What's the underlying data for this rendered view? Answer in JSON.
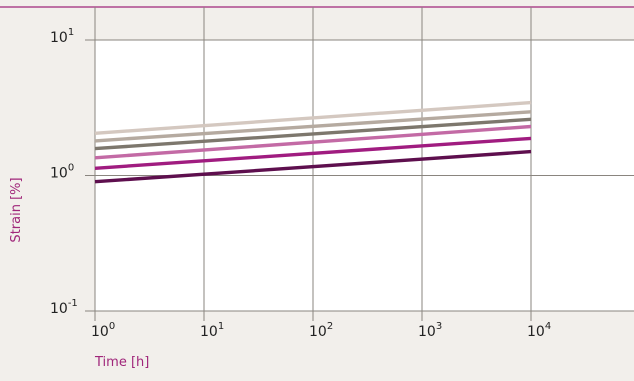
{
  "chart_data": {
    "type": "line",
    "xlabel": "Time [h]",
    "ylabel": "Strain [%]",
    "xscale": "log",
    "yscale": "log",
    "xlim": [
      1,
      10000
    ],
    "ylim": [
      0.1,
      10
    ],
    "x_ticks": [
      {
        "base": "10",
        "exp": "0"
      },
      {
        "base": "10",
        "exp": "1"
      },
      {
        "base": "10",
        "exp": "2"
      },
      {
        "base": "10",
        "exp": "3"
      },
      {
        "base": "10",
        "exp": "4"
      }
    ],
    "y_ticks": [
      {
        "base": "10",
        "exp": "1",
        "value": 10
      },
      {
        "base": "10",
        "exp": "0",
        "value": 1
      },
      {
        "base": "10",
        "exp": "-1",
        "value": 0.1
      }
    ],
    "grid": true,
    "legend": "none",
    "series": [
      {
        "color": "#d4c8c0",
        "x": [
          1,
          10000
        ],
        "y": [
          2.05,
          3.45
        ]
      },
      {
        "color": "#b5aaa0",
        "x": [
          1,
          10000
        ],
        "y": [
          1.8,
          2.95
        ]
      },
      {
        "color": "#7d776d",
        "x": [
          1,
          10000
        ],
        "y": [
          1.58,
          2.6
        ]
      },
      {
        "color": "#c36aa5",
        "x": [
          1,
          10000
        ],
        "y": [
          1.35,
          2.3
        ]
      },
      {
        "color": "#a01c80",
        "x": [
          1,
          10000
        ],
        "y": [
          1.13,
          1.88
        ]
      },
      {
        "color": "#5e0f4e",
        "x": [
          1,
          10000
        ],
        "y": [
          0.9,
          1.5
        ]
      }
    ]
  },
  "colors": {
    "background": "#f2efeb",
    "grid": "#8a857f",
    "accent": "#a0267a"
  }
}
